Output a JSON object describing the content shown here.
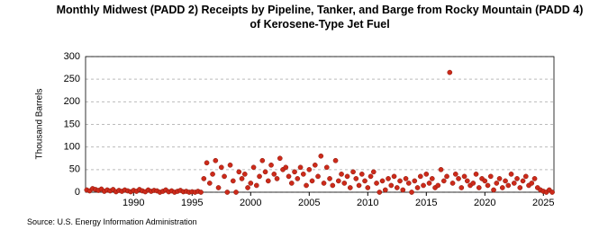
{
  "chart_data": {
    "type": "scatter",
    "title": "Monthly Midwest (PADD 2) Receipts by Pipeline, Tanker, and Barge from Rocky Mountain (PADD 4) of Kerosene-Type Jet Fuel",
    "y_label": "Thousand Barrels",
    "source": "Source: U.S. Energy Information Administration",
    "color": "#cc2a1a",
    "grid": true,
    "xlim": [
      1985.9,
      2025.9
    ],
    "xticks": [
      1990,
      1995,
      2000,
      2005,
      2010,
      2015,
      2020,
      2025
    ],
    "ylim": [
      0,
      300
    ],
    "yticks": [
      0,
      50,
      100,
      150,
      200,
      250,
      300
    ],
    "x": [
      1986,
      1986.25,
      1986.5,
      1986.75,
      1987,
      1987.25,
      1987.5,
      1987.75,
      1988,
      1988.25,
      1988.5,
      1988.75,
      1989,
      1989.25,
      1989.5,
      1989.75,
      1990,
      1990.25,
      1990.5,
      1990.75,
      1991,
      1991.25,
      1991.5,
      1991.75,
      1992,
      1992.25,
      1992.5,
      1992.75,
      1993,
      1993.25,
      1993.5,
      1993.75,
      1994,
      1994.25,
      1994.5,
      1994.75,
      1995,
      1995.25,
      1995.5,
      1995.75,
      1996,
      1996.25,
      1996.5,
      1996.75,
      1997,
      1997.25,
      1997.5,
      1997.75,
      1998,
      1998.25,
      1998.5,
      1998.75,
      1999,
      1999.25,
      1999.5,
      1999.75,
      2000,
      2000.25,
      2000.5,
      2000.75,
      2001,
      2001.25,
      2001.5,
      2001.75,
      2002,
      2002.25,
      2002.5,
      2002.75,
      2003,
      2003.25,
      2003.5,
      2003.75,
      2004,
      2004.25,
      2004.5,
      2004.75,
      2005,
      2005.25,
      2005.5,
      2005.75,
      2006,
      2006.25,
      2006.5,
      2006.75,
      2007,
      2007.25,
      2007.5,
      2007.75,
      2008,
      2008.25,
      2008.5,
      2008.75,
      2009,
      2009.25,
      2009.5,
      2009.75,
      2010,
      2010.25,
      2010.5,
      2010.75,
      2011,
      2011.25,
      2011.5,
      2011.75,
      2012,
      2012.25,
      2012.5,
      2012.75,
      2013,
      2013.25,
      2013.5,
      2013.75,
      2014,
      2014.25,
      2014.5,
      2014.75,
      2015,
      2015.25,
      2015.5,
      2015.75,
      2016,
      2016.25,
      2016.5,
      2016.75,
      2017,
      2017.25,
      2017.5,
      2017.75,
      2018,
      2018.25,
      2018.5,
      2018.75,
      2019,
      2019.25,
      2019.5,
      2019.75,
      2020,
      2020.25,
      2020.5,
      2020.75,
      2021,
      2021.25,
      2021.5,
      2021.75,
      2022,
      2022.25,
      2022.5,
      2022.75,
      2023,
      2023.25,
      2023.5,
      2023.75,
      2024,
      2024.25,
      2024.5,
      2024.75,
      2025,
      2025.25,
      2025.5,
      2025.75
    ],
    "values": [
      5,
      3,
      8,
      6,
      4,
      7,
      2,
      5,
      3,
      6,
      1,
      4,
      2,
      5,
      3,
      1,
      4,
      2,
      6,
      3,
      1,
      5,
      2,
      4,
      3,
      0,
      2,
      5,
      1,
      3,
      0,
      2,
      4,
      1,
      2,
      0,
      1,
      0,
      2,
      0,
      30,
      65,
      20,
      40,
      70,
      10,
      55,
      35,
      0,
      60,
      25,
      0,
      45,
      30,
      40,
      10,
      20,
      55,
      15,
      35,
      70,
      45,
      25,
      60,
      40,
      30,
      75,
      50,
      55,
      35,
      20,
      45,
      30,
      55,
      40,
      15,
      50,
      25,
      60,
      35,
      80,
      20,
      55,
      30,
      15,
      70,
      25,
      40,
      20,
      35,
      10,
      45,
      30,
      15,
      40,
      25,
      10,
      35,
      45,
      20,
      0,
      25,
      5,
      30,
      15,
      35,
      10,
      25,
      5,
      30,
      20,
      0,
      25,
      10,
      35,
      15,
      40,
      20,
      30,
      10,
      15,
      50,
      25,
      35,
      265,
      20,
      40,
      30,
      10,
      35,
      25,
      15,
      20,
      40,
      10,
      30,
      25,
      15,
      35,
      5,
      20,
      30,
      10,
      25,
      15,
      40,
      20,
      30,
      10,
      25,
      35,
      15,
      20,
      30,
      10,
      5,
      2,
      0,
      5,
      0
    ]
  }
}
